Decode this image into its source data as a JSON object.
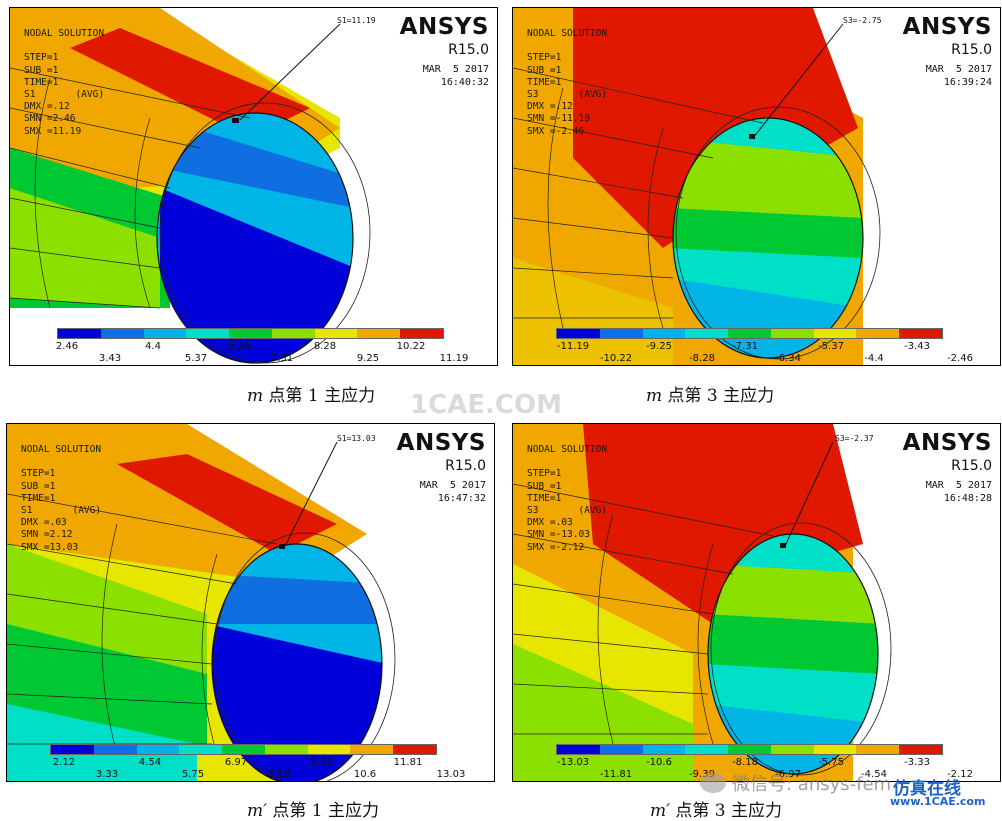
{
  "colors": [
    "#0000d8",
    "#0f6fe0",
    "#00b4e6",
    "#00e0c8",
    "#00c832",
    "#8ce000",
    "#e6e600",
    "#f0a800",
    "#e01800"
  ],
  "panels": [
    {
      "info": "NODAL SOLUTION\n\nSTEP=1\nSUB =1\nTIME=1\nS1       (AVG)\nDMX =.12\nSMN =2.46\nSMX =11.19",
      "brand": "ANSYS",
      "version": "R15.0",
      "date": "MAR  5 2017\n16:40:32",
      "callout": "S1=11.19",
      "ticks_top": [
        "2.46",
        "4.4",
        "6.34",
        "8.28",
        "10.22"
      ],
      "ticks_bottom": [
        "3.43",
        "5.37",
        "7.31",
        "9.25",
        "11.19"
      ],
      "caption_var": "m",
      "caption_text": " 点第 1 主应力"
    },
    {
      "info": "NODAL SOLUTION\n\nSTEP=1\nSUB =1\nTIME=1\nS3       (AVG)\nDMX =.12\nSMN =-11.19\nSMX =-2.46",
      "brand": "ANSYS",
      "version": "R15.0",
      "date": "MAR  5 2017\n16:39:24",
      "callout": "S3=-2.75",
      "ticks_top": [
        "-11.19",
        "-9.25",
        "-7.31",
        "-5.37",
        "-3.43"
      ],
      "ticks_bottom": [
        "-10.22",
        "-8.28",
        "-6.34",
        "-4.4",
        "-2.46"
      ],
      "caption_var": "m",
      "caption_text": " 点第 3 主应力"
    },
    {
      "info": "NODAL SOLUTION\n\nSTEP=1\nSUB =1\nTIME=1\nS1       (AVG)\nDMX =.03\nSMN =2.12\nSMX =13.03",
      "brand": "ANSYS",
      "version": "R15.0",
      "date": "MAR  5 2017\n16:47:32",
      "callout": "S1=13.03",
      "ticks_top": [
        "2.12",
        "4.54",
        "6.97",
        "9.39",
        "11.81"
      ],
      "ticks_bottom": [
        "3.33",
        "5.75",
        "8.18",
        "10.6",
        "13.03"
      ],
      "caption_var": "m′",
      "caption_text": " 点第 1 主应力"
    },
    {
      "info": "NODAL SOLUTION\n\nSTEP=1\nSUB =1\nTIME=1\nS3       (AVG)\nDMX =.03\nSMN =-13.03\nSMX =-2.12",
      "brand": "ANSYS",
      "version": "R15.0",
      "date": "MAR  5 2017\n16:48:28",
      "callout": "S3=-2.37",
      "ticks_top": [
        "-13.03",
        "-10.6",
        "-8.18",
        "-5.75",
        "-3.33"
      ],
      "ticks_bottom": [
        "-11.81",
        "-9.39",
        "-6.97",
        "-4.54",
        "-2.12"
      ],
      "caption_var": "m′",
      "caption_text": " 点第 3 主应力"
    }
  ],
  "watermarks": {
    "center": "1CAE.COM",
    "wechat": "微信号: ansys-fem",
    "brand_cn": "仿真在线",
    "site": "www.1CAE.com"
  }
}
